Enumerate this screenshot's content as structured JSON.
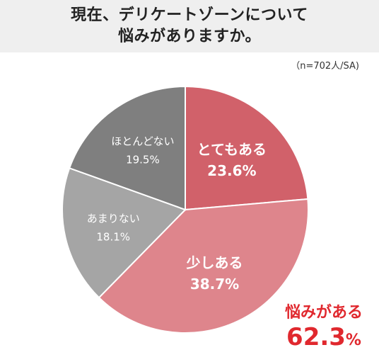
{
  "title": {
    "line1": "現在、デリケートゾーンについて",
    "line2": "悩みがありますか。"
  },
  "sample_note": "（n=702人/SA)",
  "highlight": {
    "label": "悩みがある",
    "value": "62.3",
    "unit": "%",
    "color": "#e0282e"
  },
  "chart_data": {
    "type": "pie",
    "title": "現在、デリケートゾーンについて悩みがありますか。",
    "unit": "%",
    "start": "top",
    "direction": "clockwise",
    "slices": [
      {
        "label": "とてもある",
        "value": 23.6,
        "color": "#d1616a",
        "label_color": "#ffffff"
      },
      {
        "label": "少しある",
        "value": 38.7,
        "color": "#de858c",
        "label_color": "#ffffff"
      },
      {
        "label": "あまりない",
        "value": 18.1,
        "color": "#a5a5a5",
        "label_color": "#ffffff"
      },
      {
        "label": "ほとんどない",
        "value": 19.5,
        "color": "#7f7f7f",
        "label_color": "#ffffff"
      }
    ]
  }
}
